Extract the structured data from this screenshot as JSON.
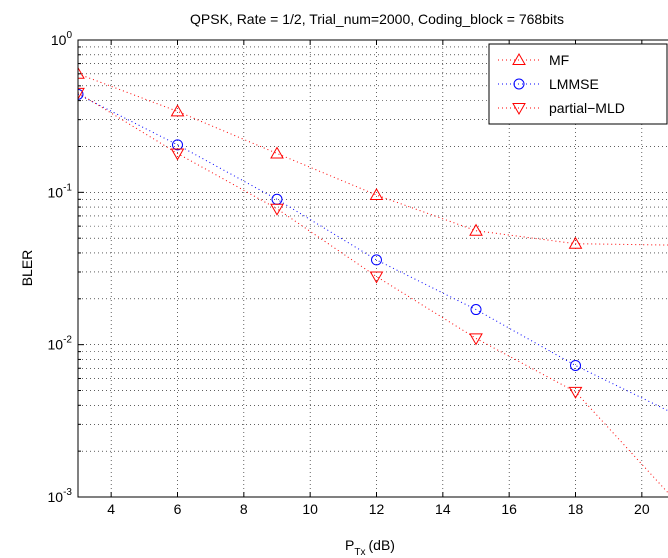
{
  "chart_data": {
    "type": "scatter",
    "title": "QPSK, Rate = 1/2, Trial_num=2000, Coding_block = 768bits",
    "xlabel_main": "P",
    "xlabel_sub": "Tx",
    "xlabel_unit": "(dB)",
    "ylabel": "BLER",
    "xlim": [
      3,
      21
    ],
    "ylim": [
      0.001,
      1
    ],
    "yscale": "log",
    "grid": true,
    "legend_position": "top-right",
    "x_ticks": [
      4,
      6,
      8,
      10,
      12,
      14,
      16,
      18,
      20
    ],
    "y_ticks": [
      {
        "base": "10",
        "exp": "0",
        "value": 1
      },
      {
        "base": "10",
        "exp": "-1",
        "value": 0.1
      },
      {
        "base": "10",
        "exp": "-2",
        "value": 0.01
      },
      {
        "base": "10",
        "exp": "-3",
        "value": 0.001
      }
    ],
    "x": [
      3,
      6,
      9,
      12,
      15,
      18,
      21
    ],
    "series": [
      {
        "name": "MF",
        "marker": "triangle-up",
        "color": "#ff0000",
        "values": [
          0.6,
          0.34,
          0.18,
          0.096,
          0.056,
          0.046,
          0.045
        ]
      },
      {
        "name": "LMMSE",
        "marker": "circle",
        "color": "#0000ff",
        "values": [
          0.44,
          0.205,
          0.09,
          0.036,
          0.017,
          0.0073,
          0.0035
        ]
      },
      {
        "name": "partial−MLD",
        "marker": "triangle-down",
        "color": "#ff0000",
        "values": [
          0.45,
          0.18,
          0.078,
          0.028,
          0.011,
          0.0049,
          0.00095
        ]
      }
    ]
  }
}
